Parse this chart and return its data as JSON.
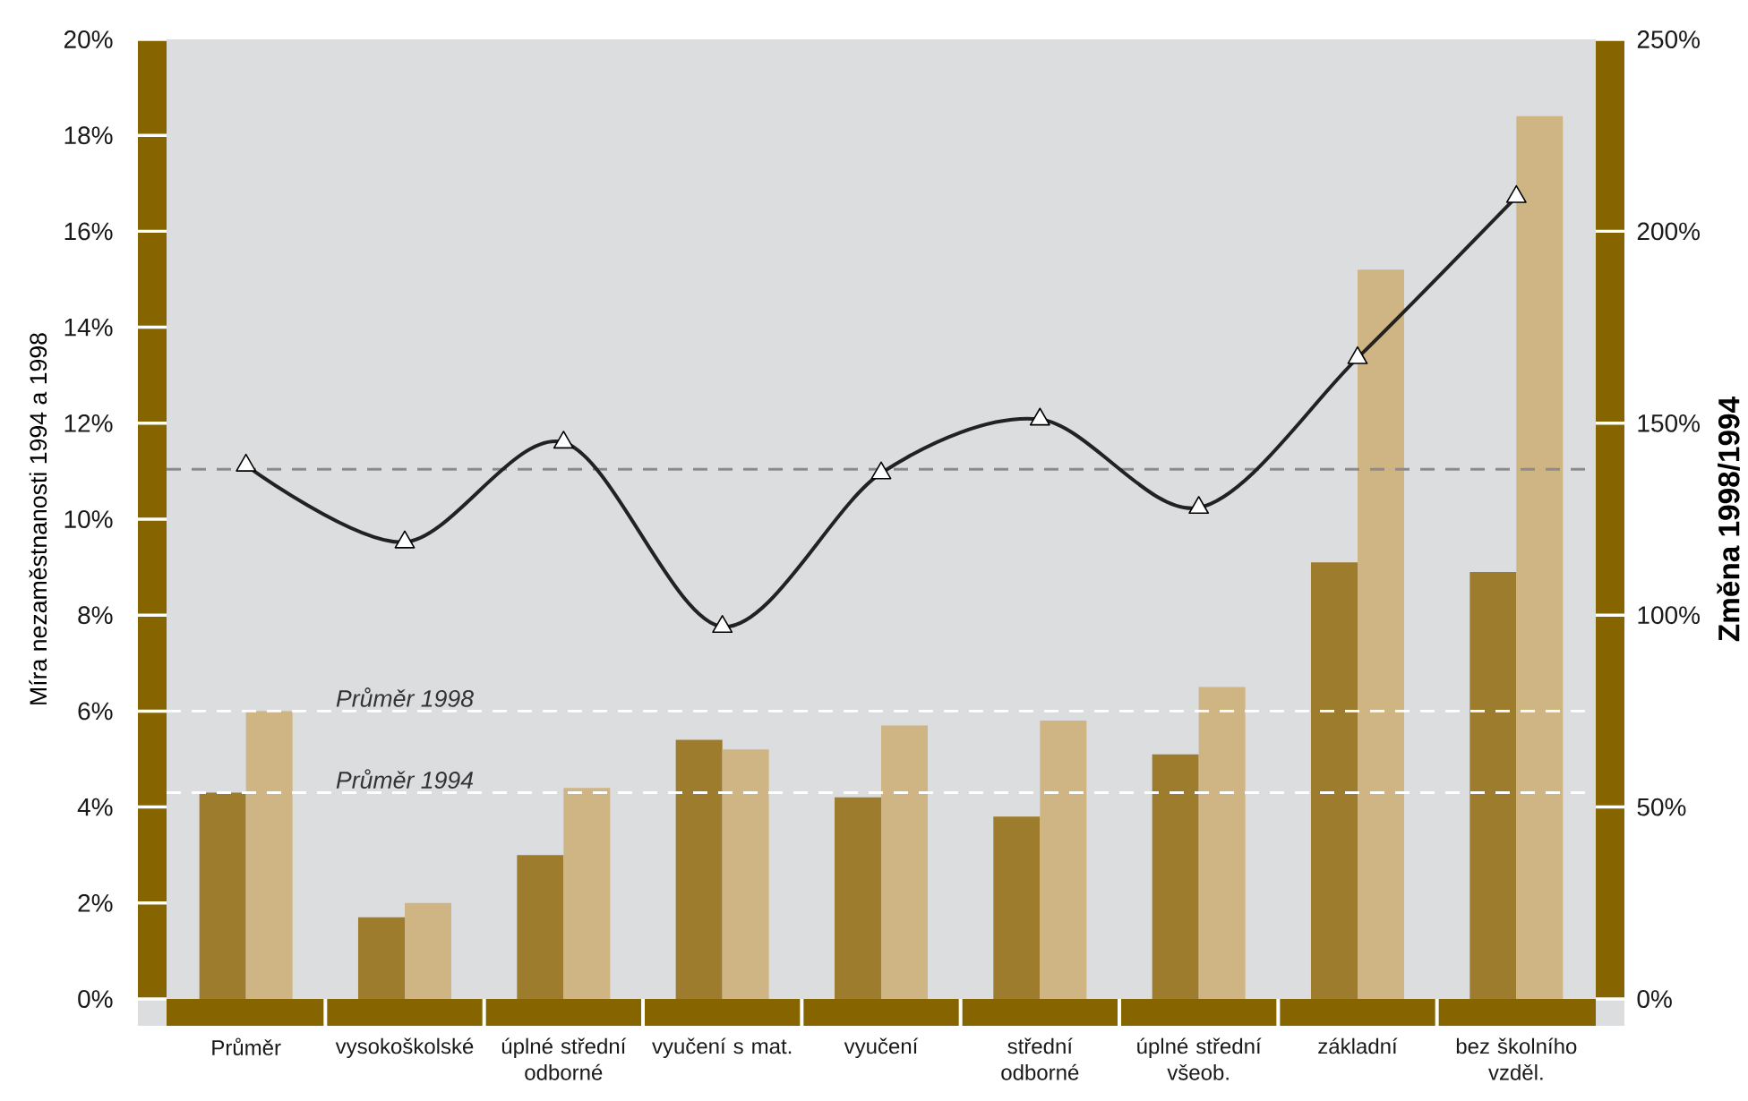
{
  "chart_data": {
    "type": "bar",
    "ylabel": "Míra nezaměstnanosti 1994 a 1998",
    "y2label": "Změna 1998/1994",
    "categories": [
      "Průměr",
      "vysokoškolské",
      "úplné střední odborné",
      "vyučení s mat.",
      "vyučení",
      "střední odborné",
      "úplné střední všeob.",
      "základní",
      "bez školního vzděl."
    ],
    "series": [
      {
        "color": "#9e7c2e",
        "values": [
          4.3,
          1.7,
          3.0,
          5.4,
          4.2,
          3.8,
          5.1,
          9.1,
          8.9
        ]
      },
      {
        "color": "#cfb584",
        "values": [
          6.0,
          2.0,
          4.4,
          5.2,
          5.7,
          5.8,
          6.5,
          15.2,
          18.4
        ]
      },
      {
        "type": "line",
        "axis": "y2",
        "color": "#222222",
        "values": [
          139,
          119,
          145,
          97,
          137,
          151,
          128,
          167,
          209
        ]
      }
    ],
    "marker": "triangle",
    "ylim": [
      0,
      20
    ],
    "yticks": [
      {
        "value": 0,
        "label": "0%"
      },
      {
        "value": 2,
        "label": "2%"
      },
      {
        "value": 4,
        "label": "4%"
      },
      {
        "value": 6,
        "label": "6%"
      },
      {
        "value": 8,
        "label": "8%"
      },
      {
        "value": 10,
        "label": "10%"
      },
      {
        "value": 12,
        "label": "12%"
      },
      {
        "value": 14,
        "label": "14%"
      },
      {
        "value": 16,
        "label": "16%"
      },
      {
        "value": 18,
        "label": "18%"
      },
      {
        "value": 20,
        "label": "20%"
      }
    ],
    "y2lim": [
      0,
      250
    ],
    "y2ticks": [
      {
        "value": 0,
        "label": "0%"
      },
      {
        "value": 50,
        "label": "50%"
      },
      {
        "value": 100,
        "label": "100%"
      },
      {
        "value": 150,
        "label": "150%"
      },
      {
        "value": 200,
        "label": "200%"
      },
      {
        "value": 250,
        "label": "250%"
      }
    ],
    "ref_lines": [
      {
        "axis": "y",
        "value": 6.0,
        "label": "Průměr 1998",
        "color": "#ffffff",
        "line_style": "dashed"
      },
      {
        "axis": "y",
        "value": 4.3,
        "label": "Průměr 1994",
        "color": "#ffffff",
        "line_style": "dashed"
      },
      {
        "axis": "y2",
        "value": 138,
        "color": "#8c8c8c",
        "line_style": "dashed"
      }
    ]
  }
}
